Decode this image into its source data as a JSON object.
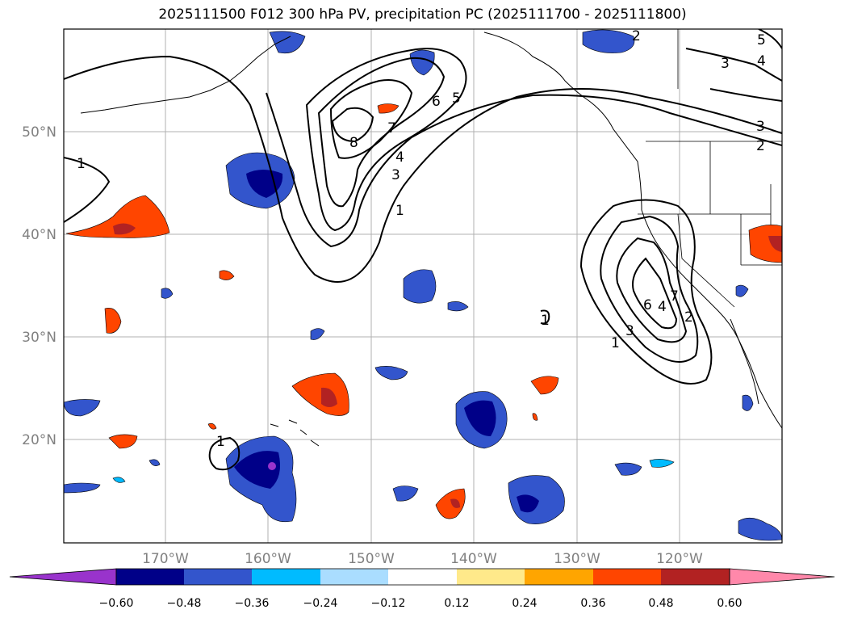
{
  "title": "2025111500 F012 300 hPa PV, precipitation PC (2025111700 - 2025111800)",
  "lat_labels": [
    "50°N",
    "40°N",
    "30°N",
    "20°N"
  ],
  "lon_labels": [
    "170°W",
    "160°W",
    "150°W",
    "140°W",
    "130°W",
    "120°W"
  ],
  "colorbar": {
    "ticks": [
      "−0.60",
      "−0.48",
      "−0.36",
      "−0.24",
      "−0.12",
      "0.12",
      "0.24",
      "0.36",
      "0.48",
      "0.60"
    ],
    "colors": [
      "#9933cc",
      "#000088",
      "#3355cc",
      "#00bbff",
      "#aaddff",
      "#ffffff",
      "#ffe98a",
      "#ffa500",
      "#ff4500",
      "#b22222",
      "#ff88aa"
    ]
  },
  "contour_labels": [
    "1",
    "1",
    "1",
    "1",
    "1",
    "2",
    "2",
    "2",
    "3",
    "3",
    "3",
    "3",
    "4",
    "4",
    "4",
    "5",
    "5",
    "6",
    "6",
    "7",
    "7",
    "8"
  ]
}
